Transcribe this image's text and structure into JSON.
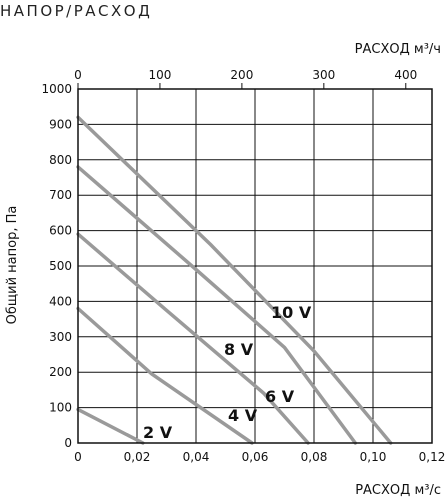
{
  "chart_data": {
    "type": "line",
    "title": "НАПОР/РАСХОД",
    "xlabel": "РАСХОД м³/с",
    "x2label": "РАСХОД м³/ч",
    "ylabel": "Общий напор, Па",
    "xlim": [
      0,
      0.12
    ],
    "ylim": [
      0,
      1000
    ],
    "x2lim": [
      0,
      432
    ],
    "xticks": [
      "0",
      "0,02",
      "0,04",
      "0,06",
      "0,08",
      "0,10",
      "0,12"
    ],
    "xtick_values": [
      0,
      0.02,
      0.04,
      0.06,
      0.08,
      0.1,
      0.12
    ],
    "x2ticks": [
      "0",
      "100",
      "200",
      "300",
      "400"
    ],
    "x2tick_values": [
      0,
      100,
      200,
      300,
      400
    ],
    "yticks": [
      "0",
      "100",
      "200",
      "300",
      "400",
      "500",
      "600",
      "700",
      "800",
      "900",
      "1000"
    ],
    "ytick_values": [
      0,
      100,
      200,
      300,
      400,
      500,
      600,
      700,
      800,
      900,
      1000
    ],
    "grid": true,
    "series": [
      {
        "name": "2 V",
        "x": [
          0,
          0.022
        ],
        "y": [
          95,
          0
        ]
      },
      {
        "name": "4 V",
        "x": [
          0,
          0.025,
          0.059
        ],
        "y": [
          380,
          195,
          0
        ]
      },
      {
        "name": "6 V",
        "x": [
          0,
          0.03,
          0.063,
          0.078
        ],
        "y": [
          590,
          375,
          140,
          0
        ]
      },
      {
        "name": "8 V",
        "x": [
          0,
          0.04,
          0.07,
          0.094
        ],
        "y": [
          780,
          490,
          270,
          0
        ]
      },
      {
        "name": "10 V",
        "x": [
          0,
          0.045,
          0.08,
          0.106
        ],
        "y": [
          920,
          560,
          260,
          0
        ]
      }
    ]
  }
}
